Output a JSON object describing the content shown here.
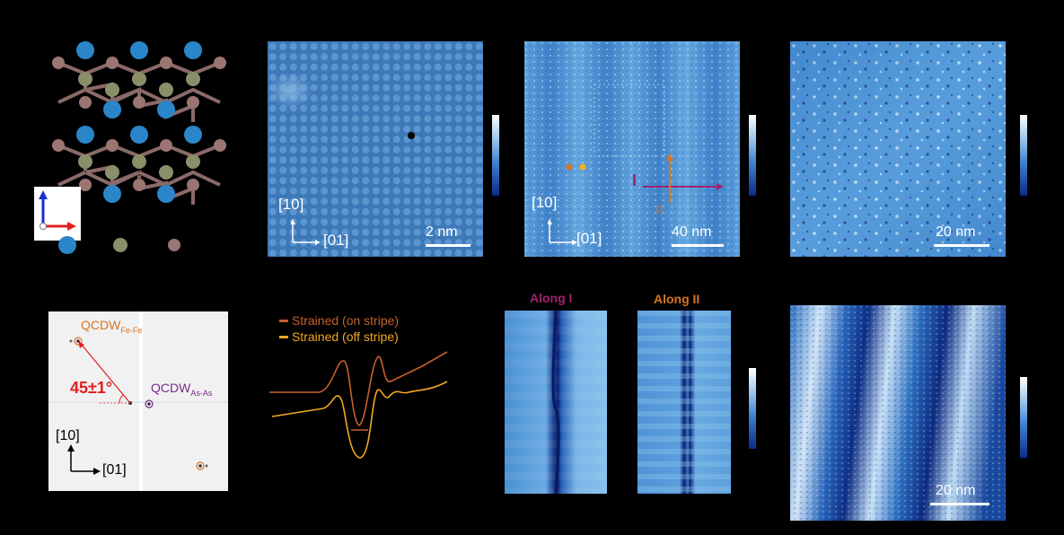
{
  "crystal": {
    "legend_colors": {
      "as": "#2a86c9",
      "fe": "#8a8f6a",
      "la": "#9a7572"
    }
  },
  "panel_b": {
    "dir_vertical": "[10]",
    "dir_horizontal": "[01]",
    "scale": "2 nm"
  },
  "panel_c": {
    "dir_vertical": "[10]",
    "dir_horizontal": "[01]",
    "scale": "40 nm",
    "cut_I": "I",
    "cut_II": "II",
    "colors": {
      "cut_I": "#a0226f",
      "cut_II": "#d8741f",
      "dot1": "#d8741f",
      "dot2": "#f0b020"
    }
  },
  "panel_d": {
    "scale": "20 nm"
  },
  "panel_e": {
    "label_fefe": "QCDW",
    "sub_fefe": "Fe-Fe",
    "label_asas": "QCDW",
    "sub_asas": "As-As",
    "angle": "45±1°",
    "dir_vertical": "[10]",
    "dir_horizontal": "[01]",
    "colors": {
      "fefe": "#d8741f",
      "asas": "#7a2a8a",
      "angle": "#e02020"
    }
  },
  "panel_f": {
    "legend": [
      {
        "label": "Strained (on stripe)",
        "color": "#c8602a"
      },
      {
        "label": "Strained (off stripe)",
        "color": "#f0a820"
      }
    ]
  },
  "panel_g": {
    "title_I": "Along I",
    "title_II": "Along II",
    "colors": {
      "title_I": "#a0226f",
      "title_II": "#d8741f"
    }
  },
  "panel_h": {
    "scale": "20 nm"
  }
}
